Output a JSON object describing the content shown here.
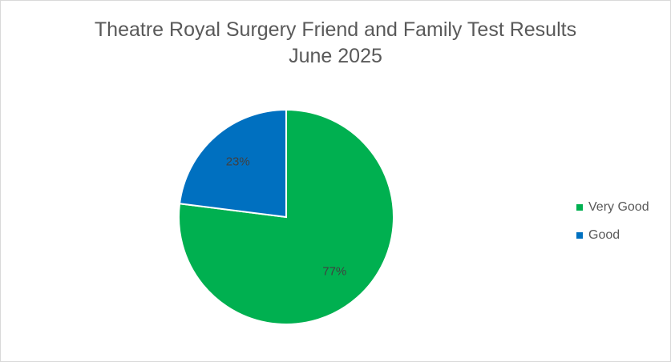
{
  "chart_data": {
    "type": "pie",
    "title": "Theatre Royal Surgery Friend and Family Test Results",
    "subtitle": "June 2025",
    "slices": [
      {
        "label": "Very Good",
        "value": 77,
        "display": "77%",
        "color": "#00b050"
      },
      {
        "label": "Good",
        "value": 23,
        "display": "23%",
        "color": "#0070c0"
      }
    ],
    "legend_position": "right"
  }
}
